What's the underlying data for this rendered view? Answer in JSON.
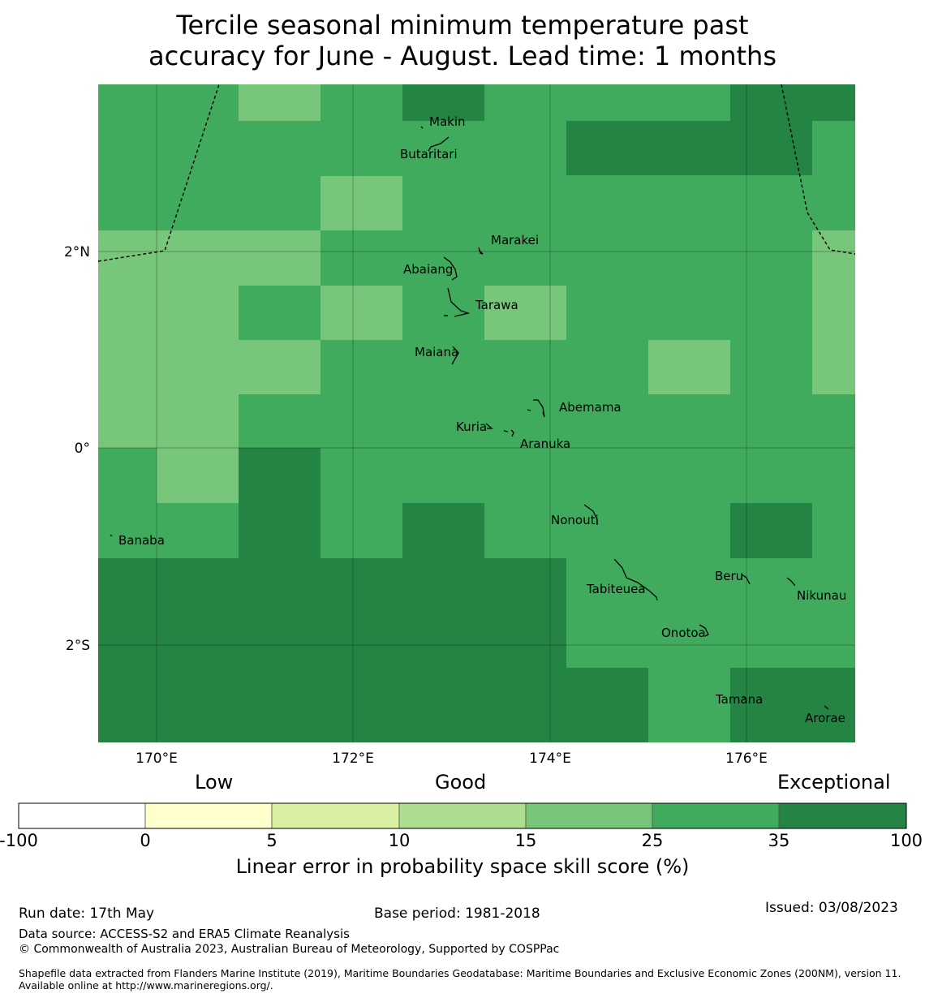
{
  "title": {
    "line1": "Tercile seasonal minimum temperature past",
    "line2": "accuracy for June - August. Lead time: 1 months"
  },
  "map": {
    "lon_labels": [
      "170°E",
      "172°E",
      "174°E",
      "176°E"
    ],
    "lat_labels": [
      "2°N",
      "0°",
      "2°S"
    ],
    "islands": [
      "Makin",
      "Butaritari",
      "Marakei",
      "Abaiang",
      "Tarawa",
      "Maiana",
      "Abemama",
      "Kuria",
      "Aranuka",
      "Nonouti",
      "Banaba",
      "Tabiteuea",
      "Beru",
      "Nikunau",
      "Onotoa",
      "Tamana",
      "Arorae"
    ],
    "colors": {
      "class_15_25": "#78c679",
      "class_25_35": "#41ab5d",
      "class_35_100": "#238443"
    }
  },
  "colorbar": {
    "category_labels": [
      "Low",
      "Good",
      "Exceptional"
    ],
    "ticks": [
      "-100",
      "0",
      "5",
      "10",
      "15",
      "25",
      "35",
      "100"
    ],
    "colors": [
      "#ffffff",
      "#ffffcc",
      "#d9f0a3",
      "#addd8e",
      "#78c679",
      "#41ab5d",
      "#238443"
    ],
    "label": "Linear error in probability space skill score (%)"
  },
  "footer": {
    "run_date": "Run date: 17th May",
    "base_period": "Base period: 1981-2018",
    "issued": "Issued: 03/08/2023",
    "data_source": "Data source: ACCESS-S2 and ERA5 Climate Reanalysis",
    "copyright": "© Commonwealth of Australia 2023, Australian Bureau of Meteorology, Supported by COSPPac",
    "shapefile": "Shapefile data extracted from Flanders Marine Institute (2019), Maritime Boundaries Geodatabase: Maritime Boundaries and Exclusive Economic Zones (200NM), version 11. Available online at http://www.marineregions.org/."
  }
}
